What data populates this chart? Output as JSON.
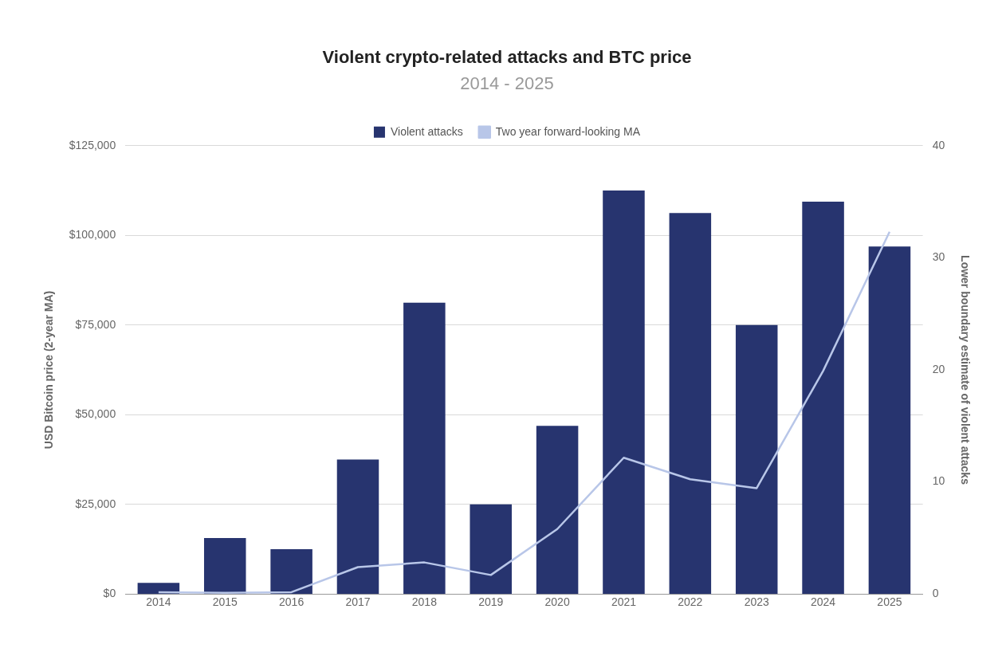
{
  "chart_data": {
    "type": "bar",
    "title": "Violent crypto-related attacks and BTC price",
    "subtitle": "2014 - 2025",
    "ylabel": "USD Bitcoin price (2-year MA)",
    "y2label": "Lower boundary estimate of violent attacks",
    "categories": [
      "2014",
      "2015",
      "2016",
      "2017",
      "2018",
      "2019",
      "2020",
      "2021",
      "2022",
      "2023",
      "2024",
      "2025"
    ],
    "series": [
      {
        "name": "Violent attacks",
        "axis": "y2",
        "color": "#27346f",
        "values": [
          1,
          5,
          4,
          12,
          26,
          8,
          15,
          36,
          34,
          24,
          35,
          31
        ]
      },
      {
        "name": "Two year forward-looking MA",
        "type": "line",
        "axis": "y",
        "color": "#b8c6e8",
        "values": [
          500,
          300,
          500,
          7500,
          8800,
          5300,
          18100,
          38000,
          32000,
          29500,
          62200,
          101000
        ]
      }
    ],
    "ylim": [
      0,
      125000
    ],
    "yticks": [
      {
        "value": 0,
        "label": "$0"
      },
      {
        "value": 25000,
        "label": "$25,000"
      },
      {
        "value": 50000,
        "label": "$50,000"
      },
      {
        "value": 75000,
        "label": "$75,000"
      },
      {
        "value": 100000,
        "label": "$100,000"
      },
      {
        "value": 125000,
        "label": "$125,000"
      }
    ],
    "y2lim": [
      0,
      40
    ],
    "y2ticks": [
      0,
      10,
      20,
      30,
      40
    ],
    "grid": "y",
    "legend": "top",
    "marker": "none"
  }
}
